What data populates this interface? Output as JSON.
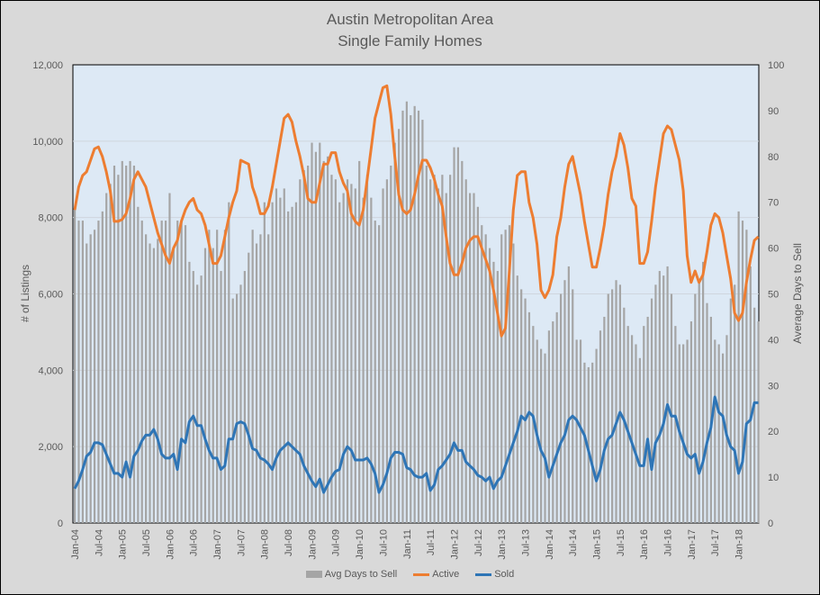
{
  "chart_data": {
    "type": "bar+line",
    "title": "Austin Metropolitan Area",
    "subtitle": "Single Family Homes",
    "ylabel": "# of Listings",
    "y2label": "Average Days to Sell",
    "ylim": [
      0,
      12000
    ],
    "y2lim": [
      0,
      100
    ],
    "yticks": [
      "0",
      "2,000",
      "4,000",
      "6,000",
      "8,000",
      "10,000",
      "12,000"
    ],
    "y2ticks": [
      "0",
      "10",
      "20",
      "30",
      "40",
      "50",
      "60",
      "70",
      "80",
      "90",
      "100"
    ],
    "xtick_labels": [
      "Jan-04",
      "Jul-04",
      "Jan-05",
      "Jul-05",
      "Jan-06",
      "Jul-06",
      "Jan-07",
      "Jul-07",
      "Jan-08",
      "Jul-08",
      "Jan-09",
      "Jul-09",
      "Jan-10",
      "Jul-10",
      "Jan-11",
      "Jul-11",
      "Jan-12",
      "Jul-12",
      "Jan-13",
      "Jul-13",
      "Jan-14",
      "Jul-14",
      "Jan-15",
      "Jul-15",
      "Jan-16",
      "Jul-16",
      "Jan-17",
      "Jul-17",
      "Jan-18"
    ],
    "x_start": "Jan-04",
    "x_end": "Jun-18",
    "grid": true,
    "legend_position": "bottom",
    "series": [
      {
        "name": "Avg Days to Sell",
        "type": "bar",
        "axis": "right",
        "color": "#a5a5a5",
        "values": [
          69,
          66,
          66,
          61,
          63,
          64,
          66,
          68,
          72,
          74,
          78,
          76,
          79,
          78,
          79,
          78,
          69,
          66,
          63,
          61,
          60,
          62,
          66,
          66,
          72,
          60,
          66,
          66,
          65,
          57,
          55,
          52,
          54,
          60,
          64,
          60,
          64,
          55,
          64,
          70,
          49,
          50,
          52,
          55,
          59,
          64,
          61,
          63,
          70,
          63,
          70,
          73,
          71,
          73,
          68,
          69,
          70,
          75,
          77,
          78,
          83,
          81,
          83,
          79,
          80,
          76,
          75,
          70,
          72,
          75,
          74,
          73,
          79,
          71,
          76,
          71,
          66,
          65,
          73,
          75,
          78,
          83,
          86,
          90,
          92,
          89,
          91,
          90,
          88,
          78,
          75,
          76,
          73,
          76,
          72,
          76,
          82,
          82,
          79,
          75,
          72,
          72,
          69,
          65,
          63,
          60,
          57,
          55,
          63,
          64,
          65,
          61,
          54,
          51,
          49,
          46,
          43,
          40,
          38,
          37,
          42,
          44,
          46,
          50,
          53,
          56,
          51,
          40,
          40,
          35,
          34,
          35,
          38,
          42,
          45,
          50,
          51,
          53,
          52,
          47,
          43,
          41,
          39,
          36,
          43,
          45,
          49,
          52,
          55,
          54,
          56,
          50,
          43,
          39,
          39,
          40,
          44,
          50,
          53,
          57,
          48,
          45,
          40,
          39,
          37,
          41,
          49,
          52,
          68,
          66,
          64,
          56,
          47,
          44
        ]
      },
      {
        "name": "Active",
        "type": "line",
        "axis": "left",
        "color": "#ed7d31",
        "values": [
          8200,
          8800,
          9100,
          9200,
          9500,
          9800,
          9850,
          9600,
          9200,
          8700,
          7900,
          7900,
          7950,
          8100,
          8500,
          9000,
          9200,
          9000,
          8800,
          8400,
          8000,
          7600,
          7300,
          7000,
          6800,
          7200,
          7400,
          7900,
          8200,
          8400,
          8500,
          8200,
          8100,
          7800,
          7300,
          6800,
          6800,
          7000,
          7500,
          8000,
          8400,
          8700,
          9500,
          9450,
          9400,
          8800,
          8500,
          8100,
          8100,
          8300,
          8800,
          9400,
          10000,
          10600,
          10700,
          10500,
          10000,
          9600,
          9100,
          8500,
          8400,
          8400,
          8900,
          9400,
          9400,
          9700,
          9700,
          9200,
          8900,
          8700,
          8100,
          7900,
          7800,
          8200,
          9000,
          9800,
          10600,
          11000,
          11400,
          11450,
          10700,
          9600,
          8600,
          8200,
          8100,
          8200,
          8600,
          9100,
          9500,
          9500,
          9300,
          9000,
          8600,
          8300,
          7500,
          6800,
          6500,
          6500,
          6800,
          7200,
          7400,
          7500,
          7500,
          7200,
          6900,
          6600,
          6100,
          5500,
          4900,
          5100,
          6600,
          8200,
          9100,
          9200,
          9200,
          8400,
          8000,
          7300,
          6100,
          5900,
          6100,
          6500,
          7500,
          8000,
          8800,
          9400,
          9600,
          9100,
          8600,
          7900,
          7300,
          6700,
          6700,
          7200,
          7800,
          8600,
          9200,
          9600,
          10200,
          9900,
          9300,
          8500,
          8300,
          6800,
          6800,
          7100,
          7900,
          8800,
          9500,
          10200,
          10400,
          10300,
          9900,
          9500,
          8700,
          7000,
          6300,
          6600,
          6300,
          6500,
          7100,
          7800,
          8100,
          8000,
          7600,
          7000,
          6400,
          5500,
          5300,
          5500,
          6300,
          6900,
          7400,
          7500
        ]
      },
      {
        "name": "Sold",
        "type": "line",
        "axis": "left",
        "color": "#2e75b6",
        "values": [
          900,
          1100,
          1400,
          1750,
          1850,
          2100,
          2100,
          2050,
          1800,
          1550,
          1300,
          1300,
          1200,
          1600,
          1200,
          1750,
          1900,
          2150,
          2300,
          2300,
          2450,
          2200,
          1800,
          1700,
          1700,
          1800,
          1400,
          2200,
          2100,
          2650,
          2800,
          2550,
          2550,
          2200,
          1900,
          1700,
          1700,
          1400,
          1500,
          2200,
          2200,
          2600,
          2650,
          2600,
          2300,
          1950,
          1900,
          1700,
          1650,
          1550,
          1400,
          1700,
          1900,
          2000,
          2100,
          2000,
          1900,
          1800,
          1500,
          1300,
          1100,
          950,
          1150,
          800,
          1000,
          1200,
          1350,
          1400,
          1800,
          2000,
          1900,
          1650,
          1650,
          1650,
          1700,
          1550,
          1300,
          800,
          1000,
          1300,
          1700,
          1850,
          1850,
          1800,
          1450,
          1400,
          1250,
          1200,
          1200,
          1300,
          850,
          1000,
          1400,
          1500,
          1650,
          1800,
          2100,
          1900,
          1900,
          1600,
          1500,
          1400,
          1250,
          1200,
          1100,
          1200,
          900,
          1100,
          1200,
          1500,
          1800,
          2100,
          2400,
          2800,
          2700,
          2900,
          2800,
          2300,
          1900,
          1700,
          1200,
          1500,
          1800,
          2100,
          2300,
          2700,
          2800,
          2700,
          2500,
          2300,
          1900,
          1500,
          1100,
          1400,
          1900,
          2200,
          2300,
          2600,
          2900,
          2700,
          2400,
          2100,
          1800,
          1500,
          1500,
          2200,
          1400,
          2100,
          2300,
          2600,
          3100,
          2800,
          2800,
          2400,
          2100,
          1800,
          1700,
          1800,
          1300,
          1600,
          2100,
          2500,
          3300,
          2900,
          2800,
          2300,
          2000,
          1900,
          1300,
          1600,
          2600,
          2700,
          3150,
          3150
        ]
      }
    ]
  }
}
